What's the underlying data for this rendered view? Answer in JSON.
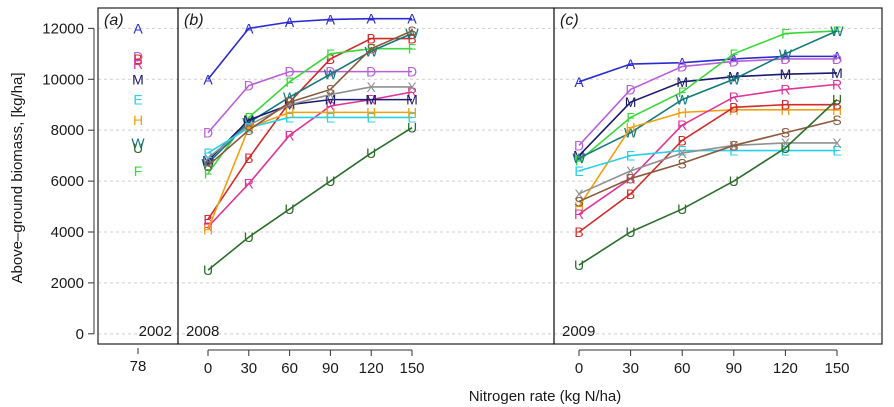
{
  "figure": {
    "ylabel": "Above–ground biomass, [kg/ha]",
    "xlabel": "Nitrogen rate (kg N/ha)"
  },
  "chart_data": [
    {
      "type": "scatter",
      "panel_label": "(a)",
      "year": "2002",
      "categories": [
        "78"
      ],
      "x": [
        78
      ],
      "ylim": [
        -400,
        12800
      ],
      "yticks": [
        0,
        2000,
        4000,
        6000,
        8000,
        10000,
        12000
      ],
      "grid": true,
      "series": [
        {
          "name": "A",
          "color": "#2b2bd0",
          "values": [
            12000
          ]
        },
        {
          "name": "D",
          "color": "#b860d8",
          "values": [
            10900
          ]
        },
        {
          "name": "B",
          "color": "#d42a2a",
          "values": [
            10800
          ]
        },
        {
          "name": "R",
          "color": "#e0339a",
          "values": [
            10600
          ]
        },
        {
          "name": "M",
          "color": "#1a1a6e",
          "values": [
            10000
          ]
        },
        {
          "name": "E",
          "color": "#27d0e8",
          "values": [
            9200
          ]
        },
        {
          "name": "H",
          "color": "#f0a010",
          "values": [
            8400
          ]
        },
        {
          "name": "W",
          "color": "#137a7a",
          "values": [
            7500
          ]
        },
        {
          "name": "U",
          "color": "#2b6e2b",
          "values": [
            7300
          ]
        },
        {
          "name": "F",
          "color": "#3ad83a",
          "values": [
            6400
          ]
        }
      ]
    },
    {
      "type": "line",
      "panel_label": "(b)",
      "year": "2008",
      "x": [
        0,
        30,
        60,
        90,
        120,
        150
      ],
      "xticks": [
        "0",
        "30",
        "60",
        "90",
        "120",
        "150"
      ],
      "ylim": [
        -400,
        12800
      ],
      "grid": true,
      "series": [
        {
          "name": "A",
          "color": "#2b2bd0",
          "values": [
            10000,
            12000,
            12250,
            12350,
            12380,
            12380
          ]
        },
        {
          "name": "D",
          "color": "#b860d8",
          "values": [
            7900,
            9750,
            10300,
            10300,
            10300,
            10300
          ]
        },
        {
          "name": "B",
          "color": "#d42a2a",
          "values": [
            4500,
            6900,
            9100,
            10800,
            11600,
            11600
          ]
        },
        {
          "name": "R",
          "color": "#e0339a",
          "values": [
            4200,
            5900,
            7800,
            8950,
            9200,
            9500
          ]
        },
        {
          "name": "F",
          "color": "#3ad83a",
          "values": [
            6300,
            8500,
            9900,
            11000,
            11200,
            11200
          ]
        },
        {
          "name": "W",
          "color": "#137a7a",
          "values": [
            6700,
            8300,
            9300,
            10200,
            11100,
            11800
          ]
        },
        {
          "name": "M",
          "color": "#1a1a6e",
          "values": [
            6800,
            8400,
            9000,
            9200,
            9200,
            9200
          ]
        },
        {
          "name": "X",
          "color": "#909090",
          "values": [
            6900,
            8200,
            9000,
            9400,
            9700,
            9700
          ]
        },
        {
          "name": "E",
          "color": "#27d0e8",
          "values": [
            7100,
            8100,
            8500,
            8500,
            8500,
            8500
          ]
        },
        {
          "name": "H",
          "color": "#f0a010",
          "values": [
            4100,
            8100,
            8700,
            8700,
            8700,
            8700
          ]
        },
        {
          "name": "S",
          "color": "#8b5a3c",
          "values": [
            6600,
            8000,
            9100,
            9600,
            11200,
            11900
          ]
        },
        {
          "name": "U",
          "color": "#2b6e2b",
          "values": [
            2500,
            3800,
            4900,
            6000,
            7100,
            8100
          ]
        }
      ]
    },
    {
      "type": "line",
      "panel_label": "(c)",
      "year": "2009",
      "x": [
        0,
        30,
        60,
        90,
        120,
        150
      ],
      "xticks": [
        "0",
        "30",
        "60",
        "90",
        "120",
        "150"
      ],
      "ylim": [
        -400,
        12800
      ],
      "grid": true,
      "series": [
        {
          "name": "A",
          "color": "#2b2bd0",
          "values": [
            9900,
            10600,
            10650,
            10800,
            10900,
            10900
          ]
        },
        {
          "name": "D",
          "color": "#b860d8",
          "values": [
            7400,
            9600,
            10500,
            10700,
            10800,
            10800
          ]
        },
        {
          "name": "M",
          "color": "#1a1a6e",
          "values": [
            7000,
            9100,
            9900,
            10100,
            10200,
            10250
          ]
        },
        {
          "name": "F",
          "color": "#3ad83a",
          "values": [
            6800,
            8500,
            9500,
            11000,
            11800,
            11900
          ]
        },
        {
          "name": "W",
          "color": "#137a7a",
          "values": [
            6900,
            7900,
            9200,
            10000,
            11000,
            11900
          ]
        },
        {
          "name": "H",
          "color": "#f0a010",
          "values": [
            5000,
            8100,
            8700,
            8800,
            8800,
            8800
          ]
        },
        {
          "name": "R",
          "color": "#e0339a",
          "values": [
            4700,
            6100,
            8200,
            9300,
            9600,
            9800
          ]
        },
        {
          "name": "B",
          "color": "#d42a2a",
          "values": [
            4000,
            5500,
            7600,
            8900,
            9000,
            9000
          ]
        },
        {
          "name": "E",
          "color": "#27d0e8",
          "values": [
            6400,
            7000,
            7200,
            7200,
            7200,
            7200
          ]
        },
        {
          "name": "X",
          "color": "#909090",
          "values": [
            5500,
            6400,
            7100,
            7400,
            7500,
            7500
          ]
        },
        {
          "name": "S",
          "color": "#8b5a3c",
          "values": [
            5200,
            6100,
            6700,
            7400,
            7900,
            8400
          ]
        },
        {
          "name": "U",
          "color": "#2b6e2b",
          "values": [
            2700,
            4000,
            4900,
            6000,
            7300,
            9200
          ]
        }
      ]
    }
  ]
}
